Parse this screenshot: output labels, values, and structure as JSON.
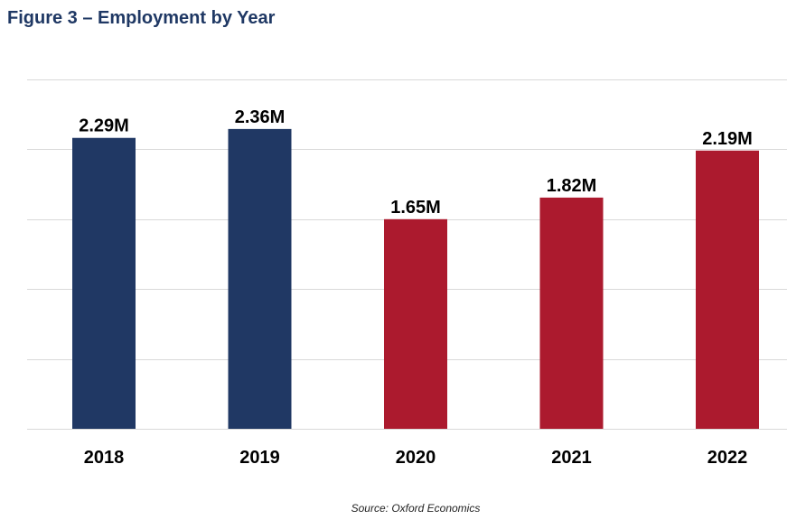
{
  "title": "Figure 3 – Employment by Year",
  "source": "Source: Oxford Economics",
  "colors": {
    "pre": "#203864",
    "post": "#ac1a2e",
    "grid": "#d9d9d9",
    "title": "#1f3864"
  },
  "chart_data": {
    "type": "bar",
    "title": "Figure 3 – Employment by Year",
    "categories": [
      "2018",
      "2019",
      "2020",
      "2021",
      "2022"
    ],
    "values": [
      2.29,
      2.36,
      1.65,
      1.82,
      2.19
    ],
    "data_labels": [
      "2.29M",
      "2.36M",
      "1.65M",
      "1.82M",
      "2.19M"
    ],
    "bar_colors": [
      "#203864",
      "#203864",
      "#ac1a2e",
      "#ac1a2e",
      "#ac1a2e"
    ],
    "unit": "M",
    "xlabel": "",
    "ylabel": "",
    "ylim": [
      0,
      2.75
    ],
    "gridlines": 5,
    "grid": true,
    "legend": "none"
  }
}
